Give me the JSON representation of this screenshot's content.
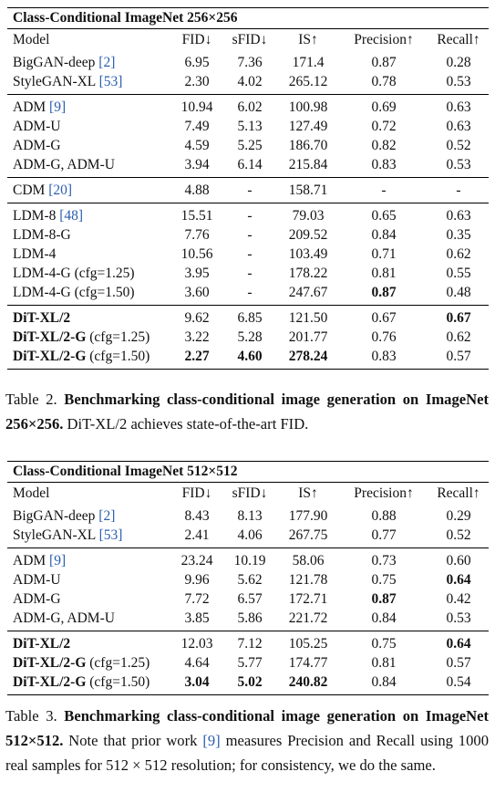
{
  "table1": {
    "title": "Class-Conditional ImageNet 256×256",
    "headers": [
      "Model",
      "FID↓",
      "sFID↓",
      "IS↑",
      "Precision↑",
      "Recall↑"
    ],
    "groups": [
      [
        {
          "model": "BigGAN-deep ",
          "cite": "[2]",
          "vals": [
            "6.95",
            "7.36",
            "171.4",
            "0.87",
            "0.28"
          ],
          "bold": []
        },
        {
          "model": "StyleGAN-XL ",
          "cite": "[53]",
          "vals": [
            "2.30",
            "4.02",
            "265.12",
            "0.78",
            "0.53"
          ],
          "bold": []
        }
      ],
      [
        {
          "model": "ADM ",
          "cite": "[9]",
          "vals": [
            "10.94",
            "6.02",
            "100.98",
            "0.69",
            "0.63"
          ],
          "bold": []
        },
        {
          "model": "ADM-U",
          "cite": "",
          "vals": [
            "7.49",
            "5.13",
            "127.49",
            "0.72",
            "0.63"
          ],
          "bold": []
        },
        {
          "model": "ADM-G",
          "cite": "",
          "vals": [
            "4.59",
            "5.25",
            "186.70",
            "0.82",
            "0.52"
          ],
          "bold": []
        },
        {
          "model": "ADM-G, ADM-U",
          "cite": "",
          "vals": [
            "3.94",
            "6.14",
            "215.84",
            "0.83",
            "0.53"
          ],
          "bold": []
        }
      ],
      [
        {
          "model": "CDM ",
          "cite": "[20]",
          "vals": [
            "4.88",
            "-",
            "158.71",
            "-",
            "-"
          ],
          "bold": []
        }
      ],
      [
        {
          "model": "LDM-8 ",
          "cite": "[48]",
          "vals": [
            "15.51",
            "-",
            "79.03",
            "0.65",
            "0.63"
          ],
          "bold": []
        },
        {
          "model": "LDM-8-G",
          "cite": "",
          "vals": [
            "7.76",
            "-",
            "209.52",
            "0.84",
            "0.35"
          ],
          "bold": []
        },
        {
          "model": "LDM-4",
          "cite": "",
          "vals": [
            "10.56",
            "-",
            "103.49",
            "0.71",
            "0.62"
          ],
          "bold": []
        },
        {
          "model": "LDM-4-G (cfg=1.25)",
          "cite": "",
          "vals": [
            "3.95",
            "-",
            "178.22",
            "0.81",
            "0.55"
          ],
          "bold": []
        },
        {
          "model": "LDM-4-G (cfg=1.50)",
          "cite": "",
          "vals": [
            "3.60",
            "-",
            "247.67",
            "0.87",
            "0.48"
          ],
          "bold": [
            3
          ]
        }
      ],
      [
        {
          "model": "DiT-XL/2",
          "modelBold": true,
          "cite": "",
          "vals": [
            "9.62",
            "6.85",
            "121.50",
            "0.67",
            "0.67"
          ],
          "bold": [
            4
          ]
        },
        {
          "model": "DiT-XL/2-G",
          "modelBold": true,
          "suffix": " (cfg=1.25)",
          "cite": "",
          "vals": [
            "3.22",
            "5.28",
            "201.77",
            "0.76",
            "0.62"
          ],
          "bold": []
        },
        {
          "model": "DiT-XL/2-G",
          "modelBold": true,
          "suffix": " (cfg=1.50)",
          "cite": "",
          "vals": [
            "2.27",
            "4.60",
            "278.24",
            "0.83",
            "0.57"
          ],
          "bold": [
            0,
            1,
            2
          ]
        }
      ]
    ]
  },
  "caption1": {
    "lead": "Table 2. ",
    "bold": "Benchmarking class-conditional image generation on ImageNet 256×256.",
    "rest": " DiT-XL/2 achieves state-of-the-art FID."
  },
  "table2": {
    "title": "Class-Conditional ImageNet 512×512",
    "headers": [
      "Model",
      "FID↓",
      "sFID↓",
      "IS↑",
      "Precision↑",
      "Recall↑"
    ],
    "groups": [
      [
        {
          "model": "BigGAN-deep ",
          "cite": "[2]",
          "vals": [
            "8.43",
            "8.13",
            "177.90",
            "0.88",
            "0.29"
          ],
          "bold": []
        },
        {
          "model": "StyleGAN-XL ",
          "cite": "[53]",
          "vals": [
            "2.41",
            "4.06",
            "267.75",
            "0.77",
            "0.52"
          ],
          "bold": []
        }
      ],
      [
        {
          "model": "ADM ",
          "cite": "[9]",
          "vals": [
            "23.24",
            "10.19",
            "58.06",
            "0.73",
            "0.60"
          ],
          "bold": []
        },
        {
          "model": "ADM-U",
          "cite": "",
          "vals": [
            "9.96",
            "5.62",
            "121.78",
            "0.75",
            "0.64"
          ],
          "bold": [
            4
          ]
        },
        {
          "model": "ADM-G",
          "cite": "",
          "vals": [
            "7.72",
            "6.57",
            "172.71",
            "0.87",
            "0.42"
          ],
          "bold": [
            3
          ]
        },
        {
          "model": "ADM-G, ADM-U",
          "cite": "",
          "vals": [
            "3.85",
            "5.86",
            "221.72",
            "0.84",
            "0.53"
          ],
          "bold": []
        }
      ],
      [
        {
          "model": "DiT-XL/2",
          "modelBold": true,
          "cite": "",
          "vals": [
            "12.03",
            "7.12",
            "105.25",
            "0.75",
            "0.64"
          ],
          "bold": [
            4
          ]
        },
        {
          "model": "DiT-XL/2-G",
          "modelBold": true,
          "suffix": " (cfg=1.25)",
          "cite": "",
          "vals": [
            "4.64",
            "5.77",
            "174.77",
            "0.81",
            "0.57"
          ],
          "bold": []
        },
        {
          "model": "DiT-XL/2-G",
          "modelBold": true,
          "suffix": " (cfg=1.50)",
          "cite": "",
          "vals": [
            "3.04",
            "5.02",
            "240.82",
            "0.84",
            "0.54"
          ],
          "bold": [
            0,
            1,
            2
          ]
        }
      ]
    ]
  },
  "caption2": {
    "lead": "Table 3. ",
    "bold": "Benchmarking class-conditional image generation on ImageNet 512×512.",
    "rest1": " Note that prior work ",
    "cite": "[9]",
    "rest2": " measures Precision and Recall using 1000 real samples for 512 × 512 resolution; for consistency, we do the same."
  }
}
